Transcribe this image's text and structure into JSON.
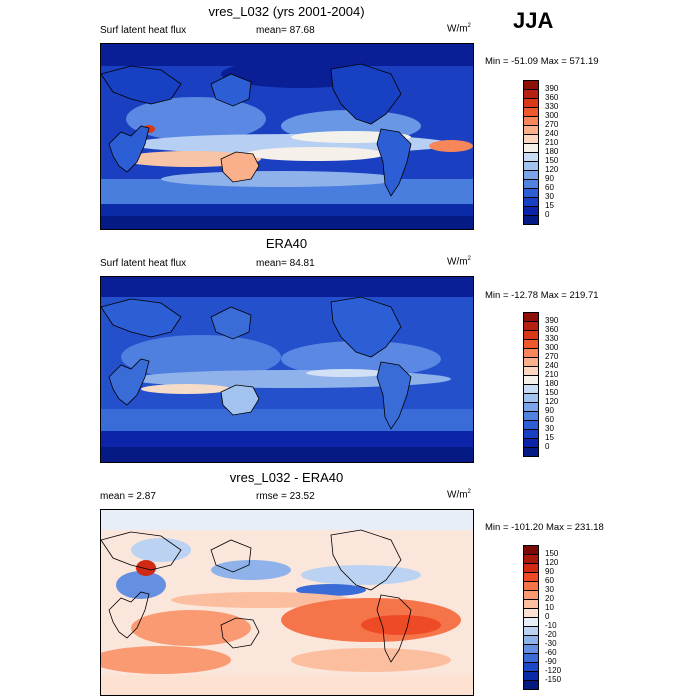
{
  "season": "JJA",
  "panels": [
    {
      "title": "vres_L032 (yrs 2001-2004)",
      "left_label": "Surf latent heat flux",
      "mid_label": "mean=  87.68",
      "units": "W/m",
      "units_sup": "2",
      "minmax": "Min = -51.09 Max = 571.19",
      "colorbar": {
        "ticks": [
          "390",
          "360",
          "330",
          "300",
          "270",
          "240",
          "210",
          "180",
          "150",
          "120",
          "90",
          "60",
          "30",
          "15",
          "0"
        ],
        "colors": [
          "#8c1008",
          "#b62010",
          "#d83a18",
          "#ee5a2c",
          "#f7875a",
          "#fbb08c",
          "#fcd6c0",
          "#f5f0ea",
          "#c9dcf5",
          "#a3c3ef",
          "#7aa3e8",
          "#5083e0",
          "#2c5fd6",
          "#1840c2",
          "#0b24a8",
          "#061a86"
        ]
      }
    },
    {
      "title": "ERA40",
      "left_label": "Surf latent heat flux",
      "mid_label": "mean=  84.81",
      "units": "W/m",
      "units_sup": "2",
      "minmax": "Min = -12.78 Max = 219.71",
      "colorbar": {
        "ticks": [
          "390",
          "360",
          "330",
          "300",
          "270",
          "240",
          "210",
          "180",
          "150",
          "120",
          "90",
          "60",
          "30",
          "15",
          "0"
        ],
        "colors": [
          "#8c1008",
          "#b62010",
          "#d83a18",
          "#ee5a2c",
          "#f7875a",
          "#fbb08c",
          "#fcd6c0",
          "#f5f0ea",
          "#c9dcf5",
          "#a3c3ef",
          "#7aa3e8",
          "#5083e0",
          "#2c5fd6",
          "#1840c2",
          "#0b24a8",
          "#061a86"
        ]
      }
    },
    {
      "title": "vres_L032 - ERA40",
      "left_label": "mean =   2.87",
      "mid_label": "rmse =  23.52",
      "units": "W/m",
      "units_sup": "2",
      "minmax": "Min = -101.20 Max = 231.18",
      "colorbar": {
        "ticks": [
          "150",
          "120",
          "90",
          "60",
          "30",
          "20",
          "10",
          "0",
          "-10",
          "-20",
          "-30",
          "-60",
          "-90",
          "-120",
          "-150"
        ],
        "colors": [
          "#7a0a06",
          "#a8180c",
          "#d02a14",
          "#ee4a26",
          "#f6744a",
          "#f99a72",
          "#fbbe9e",
          "#fde2d2",
          "#e8eef8",
          "#bcd2f2",
          "#8fb2ea",
          "#6590e2",
          "#3a6cd8",
          "#1a48c6",
          "#0a2aa8",
          "#051a80"
        ]
      }
    }
  ]
}
